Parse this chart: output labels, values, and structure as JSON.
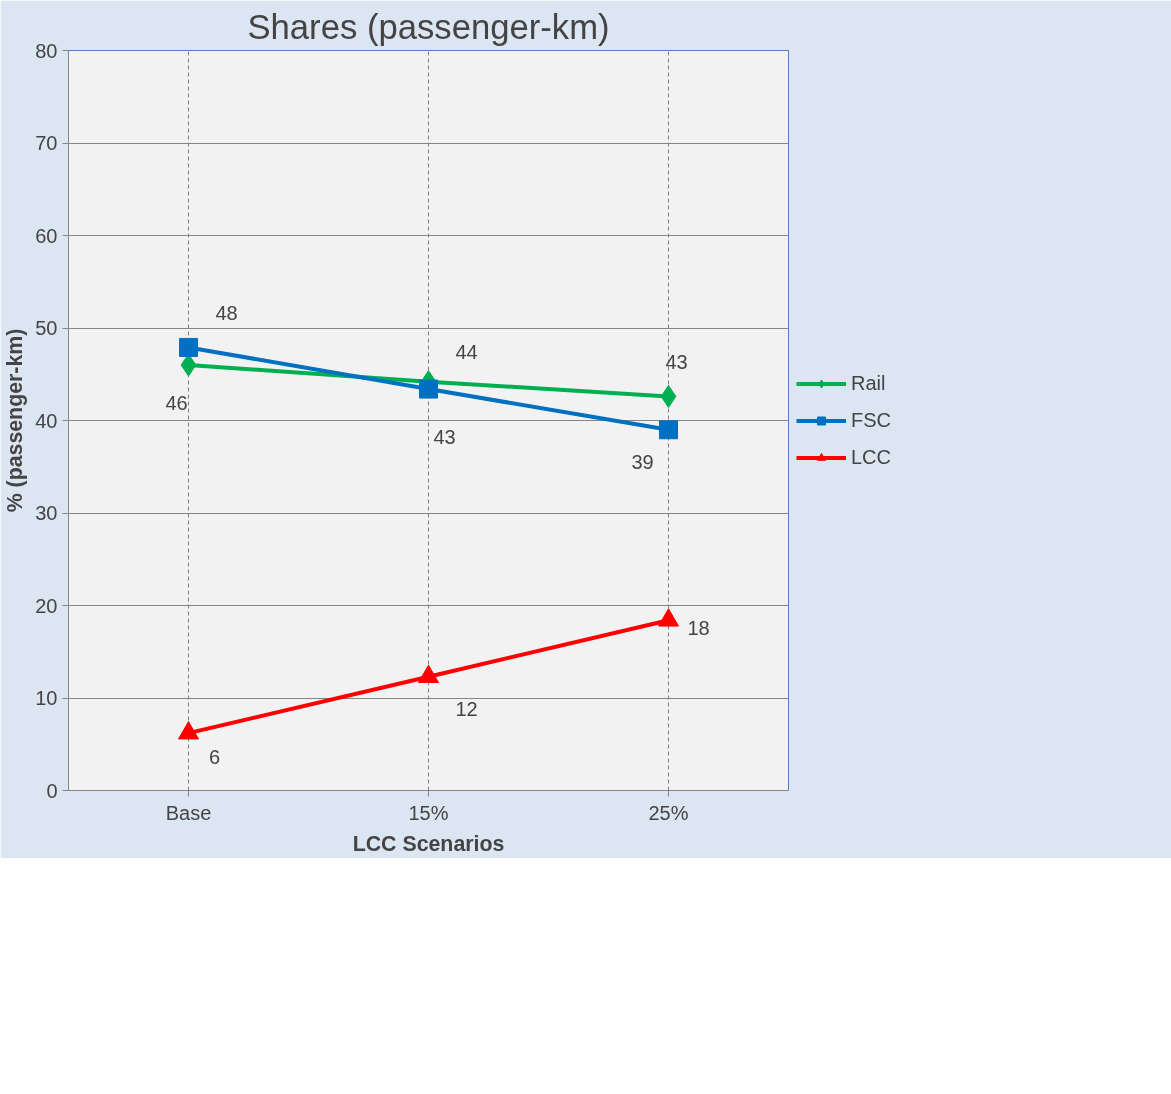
{
  "chart_data": {
    "type": "line",
    "title": "Shares (passenger-km)",
    "xlabel": "LCC Scenarios",
    "ylabel": "% (passenger-km)",
    "categories": [
      "Base",
      "15%",
      "25%"
    ],
    "series": [
      {
        "name": "Rail",
        "color": "#00b050",
        "marker": "diamond",
        "values": [
          46,
          44.2,
          42.6
        ],
        "value_labels": [
          "46",
          "44",
          "43"
        ]
      },
      {
        "name": "FSC",
        "color": "#0070c0",
        "marker": "square",
        "values": [
          47.9,
          43.4,
          39
        ],
        "value_labels": [
          "48",
          "43",
          "39"
        ]
      },
      {
        "name": "LCC",
        "color": "#ff0000",
        "marker": "triangle",
        "values": [
          6.2,
          12.3,
          18.4
        ],
        "value_labels": [
          "6",
          "12",
          "18"
        ]
      }
    ],
    "ylim": [
      0,
      80
    ],
    "yticks": [
      0,
      10,
      20,
      30,
      40,
      50,
      60,
      70,
      80
    ],
    "grid": true,
    "legend": "right",
    "line_style": "solid"
  }
}
